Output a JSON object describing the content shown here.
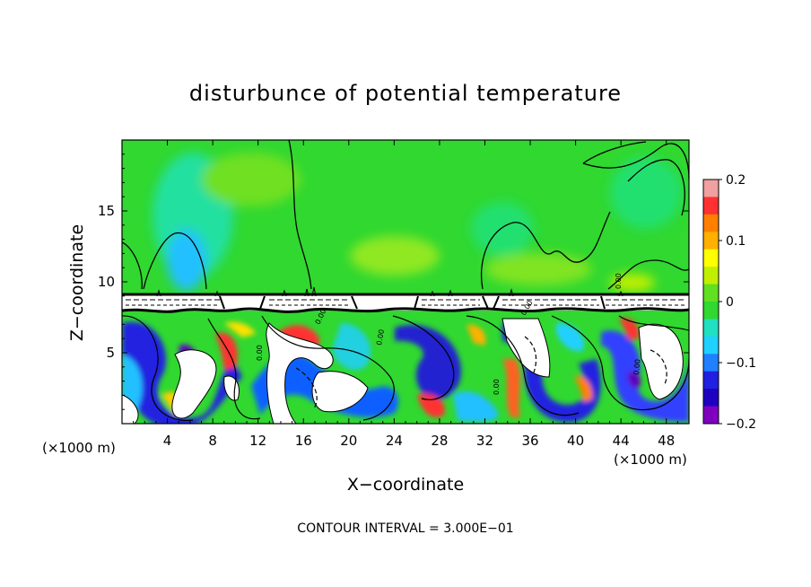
{
  "chart_data": {
    "type": "heatmap",
    "title": "disturbunce of potential temperature",
    "xlabel": "X−coordinate",
    "ylabel": "Z−coordinate",
    "x_unit_left": "(×1000 m)",
    "x_unit_right": "(×1000 m)",
    "xlim": [
      0,
      50
    ],
    "ylim": [
      0,
      20
    ],
    "x_ticks": [
      4,
      8,
      12,
      16,
      20,
      24,
      28,
      32,
      36,
      40,
      44,
      48
    ],
    "x_tick_labels": [
      "4",
      "8",
      "12",
      "16",
      "20",
      "24",
      "28",
      "32",
      "36",
      "40",
      "44",
      "48"
    ],
    "y_ticks": [
      5,
      10,
      15
    ],
    "y_tick_labels": [
      "5",
      "10",
      "15"
    ],
    "colorbar": {
      "min": -0.2,
      "max": 0.2,
      "ticks": [
        0.2,
        0.1,
        0,
        -0.1,
        -0.2
      ],
      "tick_labels": [
        "0.2",
        "0.1",
        "0",
        "−0.1",
        "−0.2"
      ],
      "colors": [
        "#f0a0a0",
        "#ff3030",
        "#ff8000",
        "#ffb000",
        "#ffff00",
        "#c0f000",
        "#60e020",
        "#30d830",
        "#20e0c0",
        "#20d0ff",
        "#2080ff",
        "#2020e0",
        "#2000c0",
        "#8000c0"
      ]
    },
    "layer_boundary_z": 9,
    "upper_background_color": "#30d830",
    "contour_label": "0.00",
    "annotation": "CONTOUR INTERVAL = 3.000E−01"
  }
}
